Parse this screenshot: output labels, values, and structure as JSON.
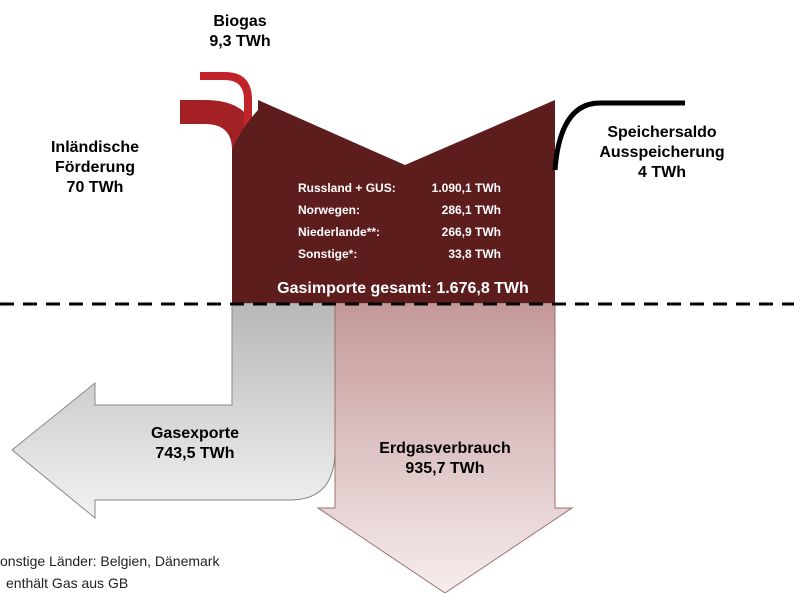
{
  "biogas": {
    "label": "Biogas",
    "value": "9,3 TWh"
  },
  "foerderung": {
    "label": [
      "Inländische",
      "Förderung"
    ],
    "value": "70 TWh"
  },
  "speicher": {
    "label": [
      "Speichersaldo",
      "Ausspeicherung"
    ],
    "value": "4 TWh"
  },
  "imports": {
    "rows": [
      [
        "Russland + GUS:",
        "1.090,1 TWh"
      ],
      [
        "Norwegen:",
        "286,1 TWh"
      ],
      [
        "Niederlande**:",
        "266,9 TWh"
      ],
      [
        "Sonstige*:",
        "33,8 TWh"
      ]
    ],
    "total": "Gasimporte gesamt: 1.676,8 TWh"
  },
  "exports": {
    "label": "Gasexporte",
    "value": "743,5 TWh"
  },
  "consumption": {
    "label": "Erdgasverbrauch",
    "value": "935,7 TWh"
  },
  "footnotes": [
    "onstige Länder: Belgien, Dänemark",
    "enthält Gas aus GB"
  ]
}
